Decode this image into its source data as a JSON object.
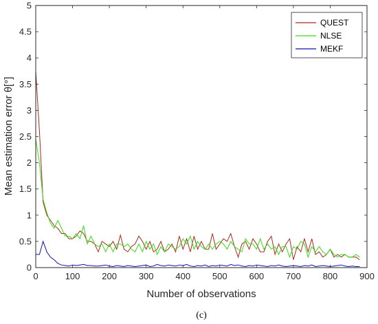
{
  "chart_data": {
    "type": "line",
    "xlabel": "Number of observations",
    "ylabel": "Mean estimation error θ[°]",
    "caption": "(c)",
    "xlim": [
      0,
      900
    ],
    "ylim": [
      0,
      5
    ],
    "xticks": [
      0,
      100,
      200,
      300,
      400,
      500,
      600,
      700,
      800,
      900
    ],
    "yticks": [
      0,
      0.5,
      1,
      1.5,
      2,
      2.5,
      3,
      3.5,
      4,
      4.5,
      5
    ],
    "ytick_labels": [
      "0",
      "0.5",
      "1",
      "1.5",
      "2",
      "2.5",
      "3",
      "3.5",
      "4",
      "4.5",
      "5"
    ],
    "grid": false,
    "legend_position": "top-right",
    "series": [
      {
        "name": "QUEST",
        "color": "#a52a1a",
        "x": [
          0,
          10,
          20,
          30,
          40,
          50,
          60,
          70,
          80,
          90,
          100,
          110,
          120,
          130,
          140,
          150,
          160,
          170,
          180,
          190,
          200,
          210,
          220,
          230,
          240,
          250,
          260,
          270,
          280,
          290,
          300,
          310,
          320,
          330,
          340,
          350,
          360,
          370,
          380,
          390,
          400,
          410,
          420,
          430,
          440,
          450,
          460,
          470,
          480,
          490,
          500,
          510,
          520,
          530,
          540,
          550,
          560,
          570,
          580,
          590,
          600,
          610,
          620,
          630,
          640,
          650,
          660,
          670,
          680,
          690,
          700,
          710,
          720,
          730,
          740,
          750,
          760,
          770,
          780,
          790,
          800,
          810,
          820,
          830,
          840,
          850,
          860,
          870,
          880
        ],
        "values": [
          3.75,
          2.6,
          1.25,
          1.0,
          0.9,
          0.8,
          0.75,
          0.65,
          0.65,
          0.55,
          0.55,
          0.6,
          0.7,
          0.65,
          0.5,
          0.5,
          0.45,
          0.3,
          0.5,
          0.45,
          0.4,
          0.5,
          0.35,
          0.62,
          0.35,
          0.3,
          0.4,
          0.45,
          0.6,
          0.5,
          0.35,
          0.5,
          0.3,
          0.35,
          0.5,
          0.3,
          0.35,
          0.45,
          0.3,
          0.6,
          0.35,
          0.55,
          0.3,
          0.6,
          0.35,
          0.5,
          0.35,
          0.35,
          0.65,
          0.35,
          0.45,
          0.55,
          0.5,
          0.65,
          0.4,
          0.2,
          0.45,
          0.5,
          0.35,
          0.55,
          0.45,
          0.3,
          0.3,
          0.5,
          0.6,
          0.25,
          0.45,
          0.3,
          0.45,
          0.55,
          0.15,
          0.4,
          0.3,
          0.55,
          0.3,
          0.55,
          0.25,
          0.3,
          0.2,
          0.25,
          0.35,
          0.2,
          0.25,
          0.2,
          0.25,
          0.2,
          0.2,
          0.2,
          0.15
        ]
      },
      {
        "name": "NLSE",
        "color": "#33dd11",
        "x": [
          0,
          10,
          20,
          30,
          40,
          50,
          60,
          70,
          80,
          90,
          100,
          110,
          120,
          130,
          140,
          150,
          160,
          170,
          180,
          190,
          200,
          210,
          220,
          230,
          240,
          250,
          260,
          270,
          280,
          290,
          300,
          310,
          320,
          330,
          340,
          350,
          360,
          370,
          380,
          390,
          400,
          410,
          420,
          430,
          440,
          450,
          460,
          470,
          480,
          490,
          500,
          510,
          520,
          530,
          540,
          550,
          560,
          570,
          580,
          590,
          600,
          610,
          620,
          630,
          640,
          650,
          660,
          670,
          680,
          690,
          700,
          710,
          720,
          730,
          740,
          750,
          760,
          770,
          780,
          790,
          800,
          810,
          820,
          830,
          840,
          850,
          860,
          870,
          880
        ],
        "values": [
          2.45,
          2.0,
          1.3,
          1.05,
          0.85,
          0.75,
          0.9,
          0.75,
          0.6,
          0.6,
          0.55,
          0.65,
          0.55,
          0.8,
          0.45,
          0.6,
          0.45,
          0.4,
          0.45,
          0.3,
          0.45,
          0.3,
          0.45,
          0.45,
          0.4,
          0.45,
          0.35,
          0.3,
          0.45,
          0.3,
          0.5,
          0.35,
          0.45,
          0.25,
          0.4,
          0.3,
          0.45,
          0.4,
          0.35,
          0.4,
          0.55,
          0.45,
          0.6,
          0.35,
          0.5,
          0.4,
          0.35,
          0.45,
          0.35,
          0.45,
          0.5,
          0.45,
          0.35,
          0.5,
          0.4,
          0.35,
          0.3,
          0.55,
          0.45,
          0.45,
          0.35,
          0.55,
          0.35,
          0.45,
          0.35,
          0.4,
          0.25,
          0.4,
          0.4,
          0.2,
          0.4,
          0.35,
          0.5,
          0.45,
          0.2,
          0.4,
          0.3,
          0.4,
          0.3,
          0.25,
          0.35,
          0.25,
          0.2,
          0.25,
          0.25,
          0.2,
          0.2,
          0.25,
          0.2
        ]
      },
      {
        "name": "MEKF",
        "color": "#1010b0",
        "x": [
          0,
          10,
          20,
          30,
          40,
          50,
          60,
          70,
          80,
          90,
          100,
          110,
          120,
          130,
          140,
          150,
          160,
          170,
          180,
          190,
          200,
          210,
          220,
          230,
          240,
          250,
          260,
          270,
          280,
          290,
          300,
          310,
          320,
          330,
          340,
          350,
          360,
          370,
          380,
          390,
          400,
          410,
          420,
          430,
          440,
          450,
          460,
          470,
          480,
          490,
          500,
          510,
          520,
          530,
          540,
          550,
          560,
          570,
          580,
          590,
          600,
          610,
          620,
          630,
          640,
          650,
          660,
          670,
          680,
          690,
          700,
          710,
          720,
          730,
          740,
          750,
          760,
          770,
          780,
          790,
          800,
          810,
          820,
          830,
          840,
          850,
          860,
          870,
          880
        ],
        "values": [
          0.25,
          0.25,
          0.5,
          0.3,
          0.2,
          0.15,
          0.08,
          0.05,
          0.04,
          0.03,
          0.05,
          0.04,
          0.05,
          0.06,
          0.04,
          0.04,
          0.03,
          0.03,
          0.04,
          0.05,
          0.03,
          0.02,
          0.04,
          0.03,
          0.02,
          0.04,
          0.03,
          0.02,
          0.03,
          0.04,
          0.05,
          0.02,
          0.03,
          0.06,
          0.04,
          0.03,
          0.05,
          0.04,
          0.03,
          0.05,
          0.04,
          0.06,
          0.03,
          0.02,
          0.04,
          0.03,
          0.05,
          0.02,
          0.04,
          0.03,
          0.05,
          0.04,
          0.03,
          0.06,
          0.04,
          0.05,
          0.03,
          0.02,
          0.04,
          0.03,
          0.05,
          0.04,
          0.03,
          0.02,
          0.04,
          0.03,
          0.05,
          0.03,
          0.02,
          0.03,
          0.04,
          0.03,
          0.02,
          0.04,
          0.03,
          0.05,
          0.02,
          0.03,
          0.04,
          0.03,
          0.02,
          0.03,
          0.04,
          0.05,
          0.03,
          0.02,
          0.03,
          0.02,
          0.02
        ]
      }
    ]
  }
}
